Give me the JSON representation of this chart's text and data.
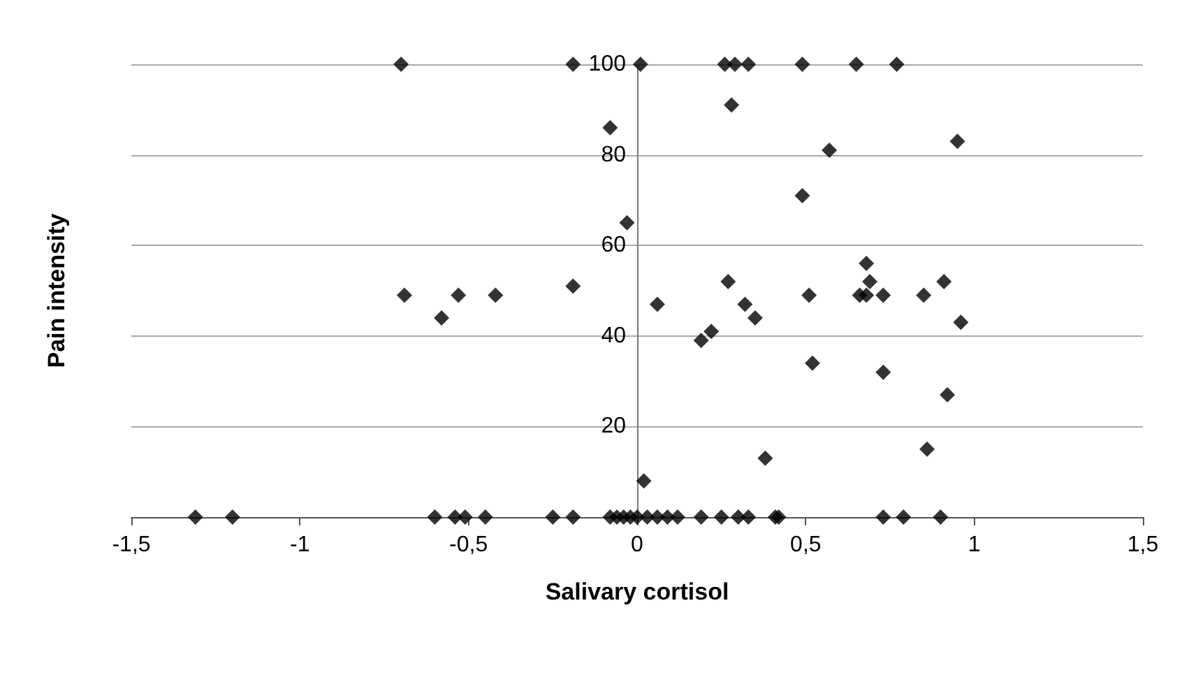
{
  "chart_data": {
    "type": "scatter",
    "xlabel": "Salivary cortisol",
    "ylabel": "Pain intensity",
    "x": [
      -0.7,
      -0.19,
      0.01,
      0.26,
      0.29,
      0.33,
      0.49,
      0.65,
      0.77,
      -0.08,
      -0.03,
      0.28,
      0.57,
      0.95,
      0.49,
      -0.69,
      -0.58,
      -0.53,
      -0.42,
      -0.19,
      0.68,
      0.27,
      0.69,
      0.91,
      0.51,
      0.66,
      0.68,
      0.73,
      0.85,
      0.06,
      0.32,
      0.35,
      0.96,
      0.19,
      0.22,
      0.52,
      0.73,
      0.92,
      0.38,
      0.86,
      0.02,
      -1.31,
      -1.2,
      -0.6,
      -0.54,
      -0.51,
      -0.45,
      -0.25,
      -0.19,
      -0.08,
      -0.06,
      -0.04,
      -0.02,
      0,
      0.03,
      0.06,
      0.09,
      0.12,
      0.19,
      0.25,
      0.3,
      0.33,
      0.41,
      0.42,
      0.73,
      0.79,
      0.9
    ],
    "values": [
      100,
      100,
      100,
      100,
      100,
      100,
      100,
      100,
      100,
      86,
      65,
      91,
      81,
      83,
      71,
      49,
      44,
      49,
      49,
      51,
      56,
      52,
      52,
      52,
      49,
      49,
      49,
      49,
      49,
      47,
      47,
      44,
      43,
      39,
      41,
      34,
      32,
      27,
      13,
      15,
      8,
      0,
      0,
      0,
      0,
      0,
      0,
      0,
      0,
      0,
      0,
      0,
      0,
      0,
      0,
      0,
      0,
      0,
      0,
      0,
      0,
      0,
      0,
      0,
      0,
      0,
      0
    ],
    "color": "#000000",
    "marker": "diamond",
    "grid": "y",
    "xlim": [
      -1.5,
      1.5
    ],
    "xticks": [
      {
        "value": -1.5,
        "label": "-1,5"
      },
      -1,
      {
        "value": -0.5,
        "label": "-0,5"
      },
      0,
      {
        "value": 0.5,
        "label": "0,5"
      },
      1,
      {
        "value": 1.5,
        "label": "1,5"
      }
    ],
    "ylim": [
      0,
      100
    ],
    "yticks": [
      {
        "value": 0,
        "label": null
      },
      20,
      40,
      60,
      80,
      100
    ]
  }
}
